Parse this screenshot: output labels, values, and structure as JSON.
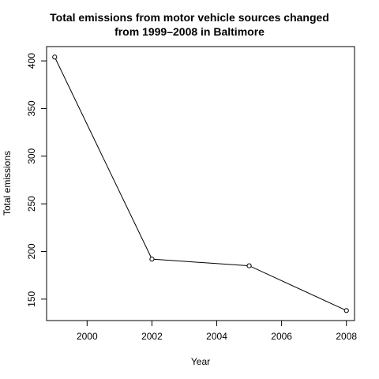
{
  "chart_data": {
    "type": "line",
    "title_lines": [
      "Total emissions from motor vehicle sources changed",
      "from 1999–2008 in Baltimore"
    ],
    "xlabel": "Year",
    "ylabel": "Total emissions",
    "x": [
      1999,
      2002,
      2005,
      2008
    ],
    "y": [
      404,
      192,
      185,
      138
    ],
    "xlim": [
      1998.75,
      2008.25
    ],
    "ylim": [
      127.5,
      415
    ],
    "x_ticks": [
      2000,
      2002,
      2004,
      2006,
      2008
    ],
    "y_ticks": [
      150,
      200,
      250,
      300,
      350,
      400
    ],
    "grid": false,
    "marker": "open-circle",
    "line_color": "#000000"
  }
}
